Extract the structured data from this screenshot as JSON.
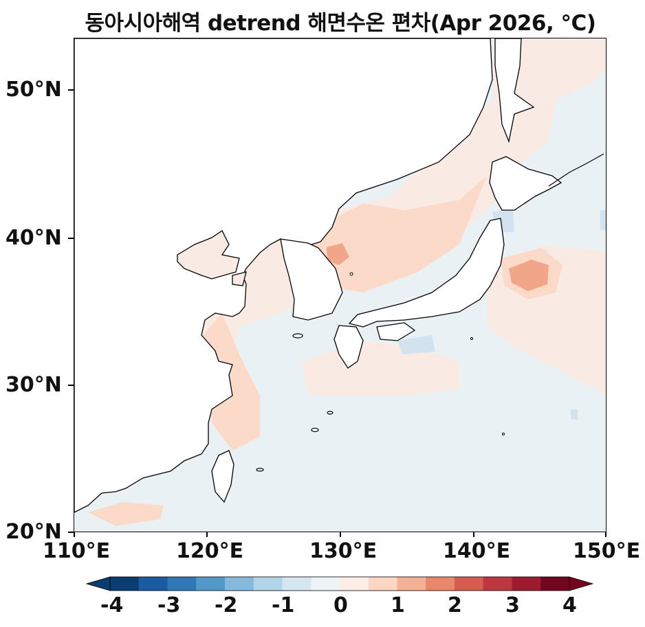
{
  "title": "동아시아해역 detrend 해면수온 편차(Apr 2026, °C)",
  "map": {
    "lon_range": [
      110,
      150
    ],
    "lat_range": [
      20,
      53.5
    ],
    "x_ticks": [
      "110°E",
      "120°E",
      "130°E",
      "140°E",
      "150°E"
    ],
    "y_ticks": [
      "50°N",
      "40°N",
      "30°N",
      "20°N"
    ],
    "land_color": "#ffffff",
    "coastline_color": "#000000"
  },
  "colorbar": {
    "ticks": [
      "-4",
      "-3",
      "-2",
      "-1",
      "0",
      "1",
      "2",
      "3",
      "4"
    ],
    "extend": "both",
    "colors": [
      "#0b3d72",
      "#1a5aa3",
      "#2f78b5",
      "#5298c8",
      "#86b9db",
      "#b1d4e8",
      "#d6e6f1",
      "#eef3f6",
      "#faeee7",
      "#fbd6c3",
      "#f3b095",
      "#e8876c",
      "#d55c4f",
      "#be3640",
      "#9e1a2e",
      "#72051f"
    ]
  },
  "anomaly_summary": {
    "strongest_warm": [
      "off northeastern Japan (~37°N, 144°E)",
      "East Sea off Korea (~38°N, 129°E)"
    ],
    "cool_patches": [
      "south of Japan (~33°N, 135°E)",
      "near Tsugaru (~41°N, 141°E)",
      "far east (~42°N, 150°E)"
    ]
  }
}
